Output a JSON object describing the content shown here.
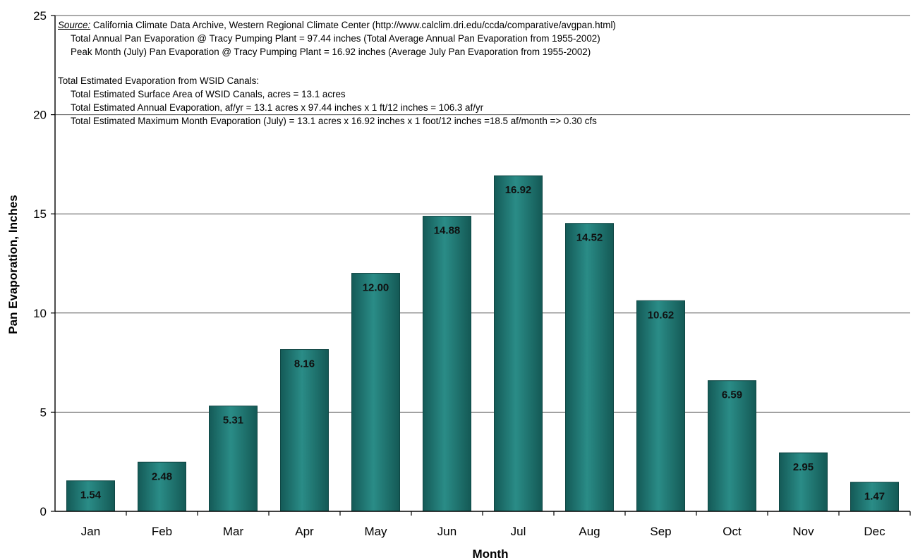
{
  "chart_data": {
    "type": "bar",
    "title": "",
    "xlabel": "Month",
    "ylabel": "Pan Evaporation, Inches",
    "categories": [
      "Jan",
      "Feb",
      "Mar",
      "Apr",
      "May",
      "Jun",
      "Jul",
      "Aug",
      "Sep",
      "Oct",
      "Nov",
      "Dec"
    ],
    "values": [
      1.54,
      2.48,
      5.31,
      8.16,
      12.0,
      14.88,
      16.92,
      14.52,
      10.62,
      6.59,
      2.95,
      1.47
    ],
    "data_labels": [
      "1.54",
      "2.48",
      "5.31",
      "8.16",
      "12.00",
      "14.88",
      "16.92",
      "14.52",
      "10.62",
      "6.59",
      "2.95",
      "1.47"
    ],
    "ylim": [
      0,
      25
    ],
    "yticks": [
      "0",
      "5",
      "10",
      "15",
      "20",
      "25"
    ],
    "grid": true,
    "legend": "none",
    "bar_color": "#1f7a76",
    "bar_edge_color": "#0f4644"
  },
  "notes": {
    "source_label": "Source:",
    "source_text": " California Climate Data Archive, Western Regional Climate Center (http://www.calclim.dri.edu/ccda/comparative/avgpan.html)",
    "line1": "Total Annual Pan Evaporation @ Tracy Pumping Plant = 97.44 inches (Total Average Annual Pan Evaporation from 1955-2002)",
    "line2": "Peak Month (July) Pan Evaporation @ Tracy Pumping Plant = 16.92 inches (Average July Pan Evaporation from 1955-2002)",
    "heading": "Total Estimated Evaporation from WSID Canals:",
    "line3": "Total Estimated Surface Area of WSID Canals, acres = 13.1 acres",
    "line4": "Total Estimated Annual Evaporation, af/yr = 13.1 acres x 97.44 inches x 1 ft/12 inches = 106.3 af/yr",
    "line5": "Total Estimated Maximum Month Evaporation (July) = 13.1 acres x 16.92 inches x 1 foot/12 inches =18.5 af/month => 0.30 cfs"
  }
}
